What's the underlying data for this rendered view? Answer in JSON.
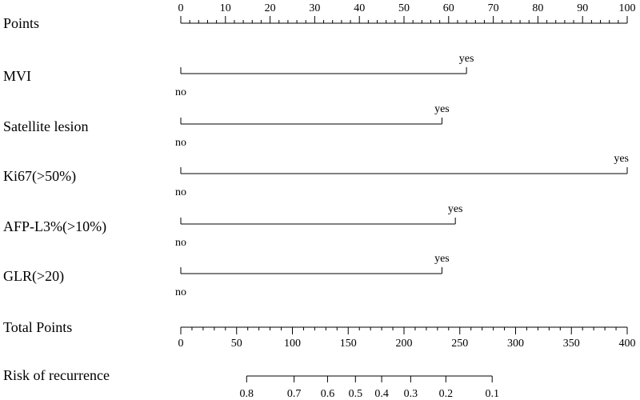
{
  "chart_data": {
    "type": "nomogram",
    "points": {
      "label": "Points",
      "range": [
        0,
        100
      ],
      "major_ticks": [
        0,
        10,
        20,
        30,
        40,
        50,
        60,
        70,
        80,
        90,
        100
      ],
      "minor_step": 2
    },
    "variables": [
      {
        "name": "MVI",
        "levels": [
          {
            "label": "no",
            "points": 0
          },
          {
            "label": "yes",
            "points": 64
          }
        ]
      },
      {
        "name": "Satellite lesion",
        "levels": [
          {
            "label": "no",
            "points": 0
          },
          {
            "label": "yes",
            "points": 58.5
          }
        ]
      },
      {
        "name": "Ki67(>50%)",
        "levels": [
          {
            "label": "no",
            "points": 0
          },
          {
            "label": "yes",
            "points": 100
          }
        ]
      },
      {
        "name": "AFP-L3%(>10%)",
        "levels": [
          {
            "label": "no",
            "points": 0
          },
          {
            "label": "yes",
            "points": 61.5
          }
        ]
      },
      {
        "name": "GLR(>20)",
        "levels": [
          {
            "label": "no",
            "points": 0
          },
          {
            "label": "yes",
            "points": 58.5
          }
        ]
      }
    ],
    "total_points": {
      "label": "Total Points",
      "range": [
        0,
        400
      ],
      "major_ticks": [
        0,
        50,
        100,
        150,
        200,
        250,
        300,
        350,
        400
      ],
      "minor_step": 10
    },
    "risk": {
      "label": "Risk of recurrence",
      "ticks": [
        {
          "label": "0.8",
          "total_points": 59
        },
        {
          "label": "0.7",
          "total_points": 101.5
        },
        {
          "label": "0.6",
          "total_points": 131.5
        },
        {
          "label": "0.5",
          "total_points": 156.5
        },
        {
          "label": "0.4",
          "total_points": 180
        },
        {
          "label": "0.3",
          "total_points": 206
        },
        {
          "label": "0.2",
          "total_points": 237.5
        },
        {
          "label": "0.1",
          "total_points": 279
        }
      ]
    }
  }
}
